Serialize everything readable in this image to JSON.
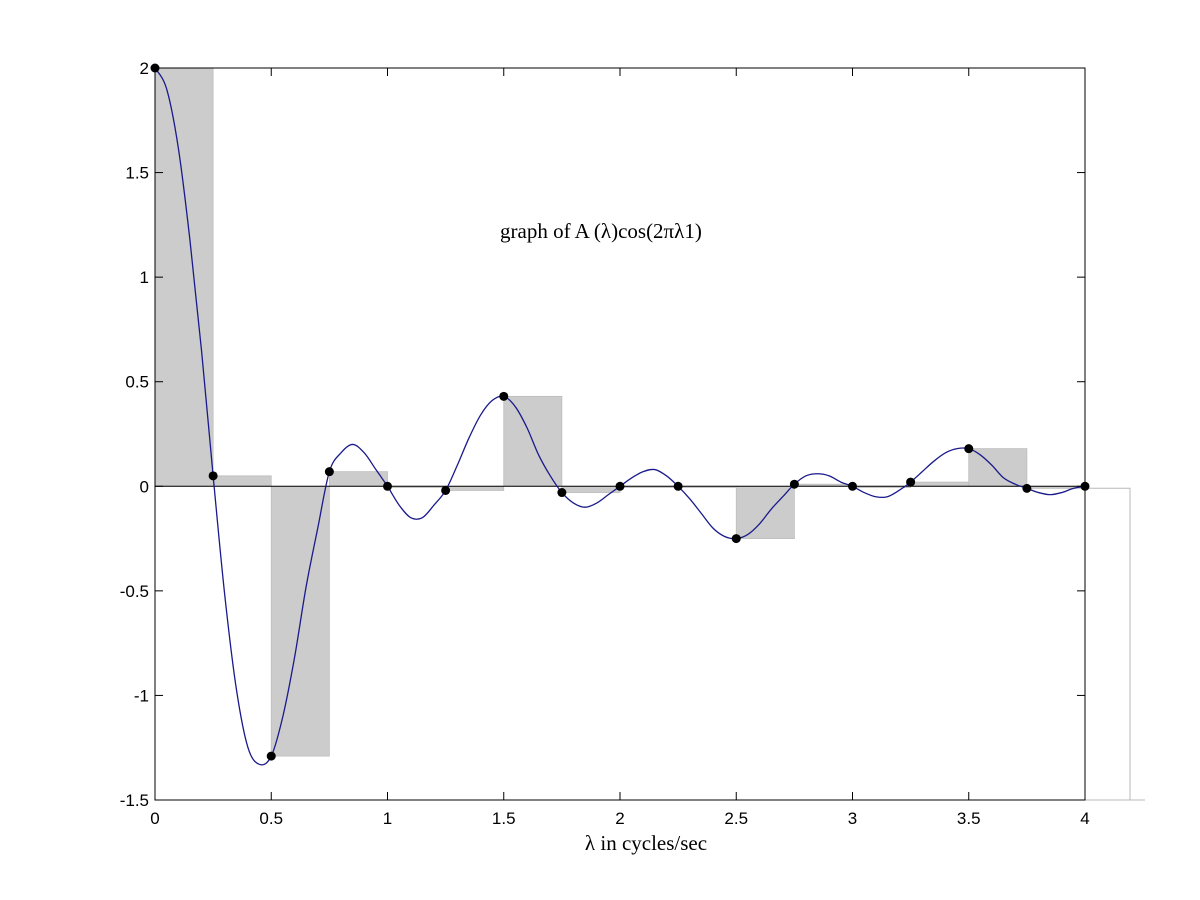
{
  "chart_data": {
    "type": "line",
    "annotation": "graph of A (λ)cos(2πλ1)",
    "xlabel": "λ in cycles/sec",
    "ylabel": "",
    "xlim": [
      0,
      4
    ],
    "ylim": [
      -1.5,
      2
    ],
    "x_ticks": [
      "0",
      "0.5",
      "1",
      "1.5",
      "2",
      "2.5",
      "3",
      "3.5",
      "4"
    ],
    "y_ticks": [
      "2",
      "1.5",
      "1",
      "0.5",
      "0",
      "-0.5",
      "-1",
      "-1.5"
    ],
    "grid": false,
    "curve_color": "#1a1a8c",
    "bar_color": "#cccccc",
    "marker_color": "#000000",
    "step_width": 0.25,
    "samples": [
      {
        "x": 0,
        "y": 2.0
      },
      {
        "x": 0.25,
        "y": 0.05
      },
      {
        "x": 0.5,
        "y": -1.29
      },
      {
        "x": 0.75,
        "y": 0.07
      },
      {
        "x": 1.0,
        "y": 0.0
      },
      {
        "x": 1.25,
        "y": -0.02
      },
      {
        "x": 1.5,
        "y": 0.43
      },
      {
        "x": 1.75,
        "y": -0.03
      },
      {
        "x": 2.0,
        "y": 0.0
      },
      {
        "x": 2.25,
        "y": 0.0
      },
      {
        "x": 2.5,
        "y": -0.25
      },
      {
        "x": 2.75,
        "y": 0.01
      },
      {
        "x": 3.0,
        "y": 0.0
      },
      {
        "x": 3.25,
        "y": 0.02
      },
      {
        "x": 3.5,
        "y": 0.18
      },
      {
        "x": 3.75,
        "y": -0.01
      },
      {
        "x": 4.0,
        "y": 0.0
      }
    ],
    "curve": [
      {
        "x": 0.0,
        "y": 2.0
      },
      {
        "x": 0.05,
        "y": 1.9
      },
      {
        "x": 0.1,
        "y": 1.62
      },
      {
        "x": 0.15,
        "y": 1.18
      },
      {
        "x": 0.2,
        "y": 0.65
      },
      {
        "x": 0.25,
        "y": 0.05
      },
      {
        "x": 0.3,
        "y": -0.52
      },
      {
        "x": 0.35,
        "y": -0.97
      },
      {
        "x": 0.4,
        "y": -1.25
      },
      {
        "x": 0.45,
        "y": -1.33
      },
      {
        "x": 0.5,
        "y": -1.29
      },
      {
        "x": 0.55,
        "y": -1.1
      },
      {
        "x": 0.6,
        "y": -0.82
      },
      {
        "x": 0.65,
        "y": -0.48
      },
      {
        "x": 0.7,
        "y": -0.2
      },
      {
        "x": 0.75,
        "y": 0.07
      },
      {
        "x": 0.8,
        "y": 0.16
      },
      {
        "x": 0.85,
        "y": 0.2
      },
      {
        "x": 0.9,
        "y": 0.16
      },
      {
        "x": 0.95,
        "y": 0.08
      },
      {
        "x": 1.0,
        "y": 0.0
      },
      {
        "x": 1.05,
        "y": -0.09
      },
      {
        "x": 1.1,
        "y": -0.15
      },
      {
        "x": 1.15,
        "y": -0.15
      },
      {
        "x": 1.2,
        "y": -0.09
      },
      {
        "x": 1.25,
        "y": -0.02
      },
      {
        "x": 1.3,
        "y": 0.1
      },
      {
        "x": 1.35,
        "y": 0.23
      },
      {
        "x": 1.4,
        "y": 0.34
      },
      {
        "x": 1.45,
        "y": 0.41
      },
      {
        "x": 1.5,
        "y": 0.43
      },
      {
        "x": 1.55,
        "y": 0.38
      },
      {
        "x": 1.6,
        "y": 0.28
      },
      {
        "x": 1.65,
        "y": 0.15
      },
      {
        "x": 1.7,
        "y": 0.05
      },
      {
        "x": 1.75,
        "y": -0.03
      },
      {
        "x": 1.8,
        "y": -0.08
      },
      {
        "x": 1.85,
        "y": -0.1
      },
      {
        "x": 1.9,
        "y": -0.08
      },
      {
        "x": 1.95,
        "y": -0.04
      },
      {
        "x": 2.0,
        "y": 0.0
      },
      {
        "x": 2.05,
        "y": 0.04
      },
      {
        "x": 2.1,
        "y": 0.07
      },
      {
        "x": 2.15,
        "y": 0.08
      },
      {
        "x": 2.2,
        "y": 0.05
      },
      {
        "x": 2.25,
        "y": 0.0
      },
      {
        "x": 2.3,
        "y": -0.06
      },
      {
        "x": 2.35,
        "y": -0.13
      },
      {
        "x": 2.4,
        "y": -0.2
      },
      {
        "x": 2.45,
        "y": -0.24
      },
      {
        "x": 2.5,
        "y": -0.25
      },
      {
        "x": 2.55,
        "y": -0.23
      },
      {
        "x": 2.6,
        "y": -0.18
      },
      {
        "x": 2.65,
        "y": -0.11
      },
      {
        "x": 2.7,
        "y": -0.05
      },
      {
        "x": 2.75,
        "y": 0.01
      },
      {
        "x": 2.8,
        "y": 0.05
      },
      {
        "x": 2.85,
        "y": 0.06
      },
      {
        "x": 2.9,
        "y": 0.05
      },
      {
        "x": 2.95,
        "y": 0.02
      },
      {
        "x": 3.0,
        "y": 0.0
      },
      {
        "x": 3.05,
        "y": -0.03
      },
      {
        "x": 3.1,
        "y": -0.05
      },
      {
        "x": 3.15,
        "y": -0.05
      },
      {
        "x": 3.2,
        "y": -0.02
      },
      {
        "x": 3.25,
        "y": 0.02
      },
      {
        "x": 3.3,
        "y": 0.07
      },
      {
        "x": 3.35,
        "y": 0.12
      },
      {
        "x": 3.4,
        "y": 0.16
      },
      {
        "x": 3.45,
        "y": 0.18
      },
      {
        "x": 3.5,
        "y": 0.18
      },
      {
        "x": 3.55,
        "y": 0.15
      },
      {
        "x": 3.6,
        "y": 0.1
      },
      {
        "x": 3.65,
        "y": 0.04
      },
      {
        "x": 3.7,
        "y": 0.01
      },
      {
        "x": 3.75,
        "y": -0.01
      },
      {
        "x": 3.8,
        "y": -0.03
      },
      {
        "x": 3.85,
        "y": -0.04
      },
      {
        "x": 3.9,
        "y": -0.03
      },
      {
        "x": 3.95,
        "y": -0.01
      },
      {
        "x": 4.0,
        "y": 0.0
      }
    ]
  }
}
